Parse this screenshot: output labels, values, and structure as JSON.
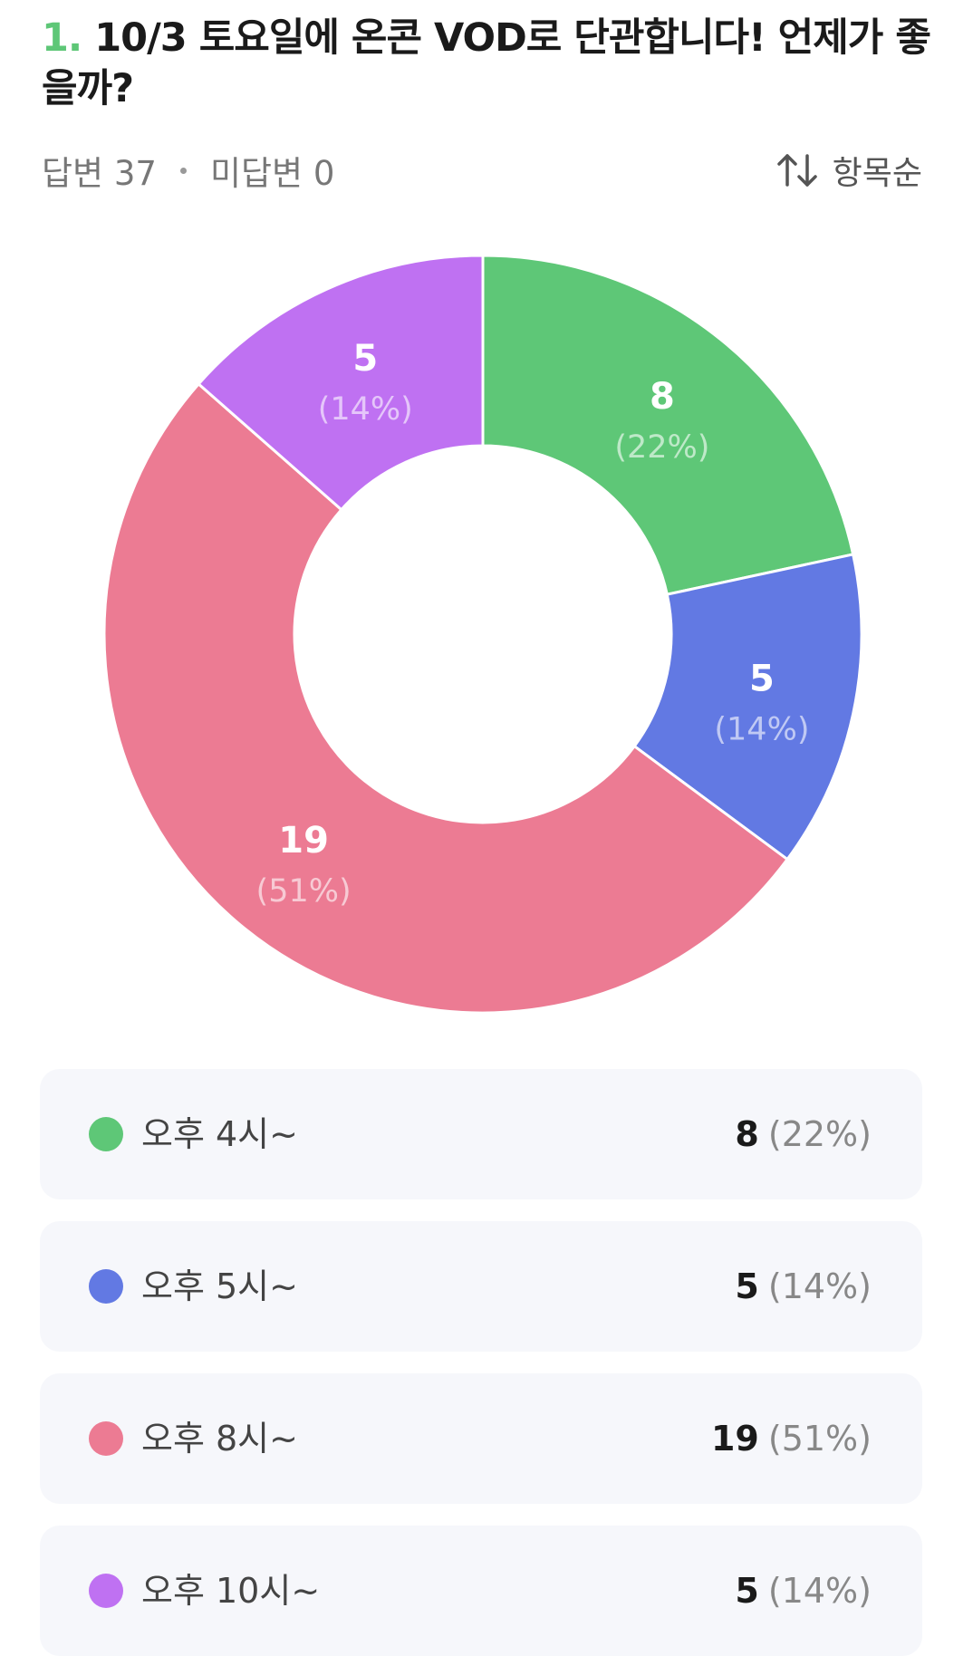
{
  "question": {
    "number": "1.",
    "title": "10/3 토요일에 온콘 VOD로 단관합니다! 언제가 좋을까?"
  },
  "stats": {
    "answered": "답변 37",
    "unanswered": "미답변 0"
  },
  "sort": {
    "label": "항목순",
    "icon": "sort-arrows-icon"
  },
  "chart_data": {
    "type": "pie",
    "style": "donut",
    "total": 37,
    "slices": [
      {
        "label": "오후 4시~",
        "value": 8,
        "percent": "22%",
        "color": "#5ec777"
      },
      {
        "label": "오후 5시~",
        "value": 5,
        "percent": "14%",
        "color": "#6279e3"
      },
      {
        "label": "오후 8시~",
        "value": 19,
        "percent": "51%",
        "color": "#ec7b93"
      },
      {
        "label": "오후 10시~",
        "value": 5,
        "percent": "14%",
        "color": "#bf71f2"
      }
    ]
  },
  "legend": [
    {
      "label": "오후 4시~",
      "count": "8",
      "pct": "(22%)"
    },
    {
      "label": "오후 5시~",
      "count": "5",
      "pct": "(14%)"
    },
    {
      "label": "오후 8시~",
      "count": "19",
      "pct": "(51%)"
    },
    {
      "label": "오후 10시~",
      "count": "5",
      "pct": "(14%)"
    }
  ]
}
